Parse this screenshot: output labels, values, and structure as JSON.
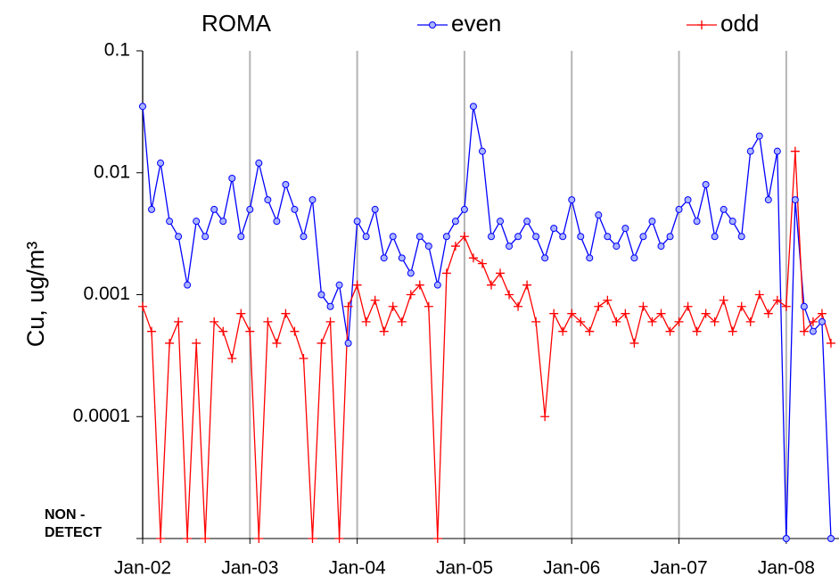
{
  "chart_data": {
    "type": "line",
    "title": "ROMA",
    "y_label": "Cu,  ug/m³",
    "log_scale": "y",
    "grid": "x",
    "legend": "top",
    "x": [
      "2002-01",
      "2002-02",
      "2002-03",
      "2002-04",
      "2002-05",
      "2002-06",
      "2002-07",
      "2002-08",
      "2002-09",
      "2002-10",
      "2002-11",
      "2002-12",
      "2003-01",
      "2003-02",
      "2003-03",
      "2003-04",
      "2003-05",
      "2003-06",
      "2003-07",
      "2003-08",
      "2003-09",
      "2003-10",
      "2003-11",
      "2003-12",
      "2004-01",
      "2004-02",
      "2004-03",
      "2004-04",
      "2004-05",
      "2004-06",
      "2004-07",
      "2004-08",
      "2004-09",
      "2004-10",
      "2004-11",
      "2004-12",
      "2005-01",
      "2005-02",
      "2005-03",
      "2005-04",
      "2005-05",
      "2005-06",
      "2005-07",
      "2005-08",
      "2005-09",
      "2005-10",
      "2005-11",
      "2005-12",
      "2006-01",
      "2006-02",
      "2006-03",
      "2006-04",
      "2006-05",
      "2006-06",
      "2006-07",
      "2006-08",
      "2006-09",
      "2006-10",
      "2006-11",
      "2006-12",
      "2007-01",
      "2007-02",
      "2007-03",
      "2007-04",
      "2007-05",
      "2007-06",
      "2007-07",
      "2007-08",
      "2007-09",
      "2007-10",
      "2007-11",
      "2007-12",
      "2008-01",
      "2008-02",
      "2008-03",
      "2008-04",
      "2008-05",
      "2008-06"
    ],
    "series": [
      {
        "name": "even",
        "color": "#0000ff",
        "marker_fill": "#aab4ff",
        "values": [
          0.035,
          0.005,
          0.012,
          0.004,
          0.003,
          0.0012,
          0.004,
          0.003,
          0.005,
          0.004,
          0.009,
          0.003,
          0.005,
          0.012,
          0.006,
          0.004,
          0.008,
          0.005,
          0.003,
          0.006,
          0.001,
          0.0008,
          0.0012,
          0.0004,
          0.004,
          0.003,
          0.005,
          0.002,
          0.003,
          0.002,
          0.0015,
          0.003,
          0.0025,
          0.0012,
          0.003,
          0.004,
          0.005,
          0.035,
          0.015,
          0.003,
          0.004,
          0.0025,
          0.003,
          0.004,
          0.003,
          0.002,
          0.0035,
          0.003,
          0.006,
          0.003,
          0.002,
          0.0045,
          0.003,
          0.0025,
          0.0035,
          0.002,
          0.003,
          0.004,
          0.0025,
          0.003,
          0.005,
          0.006,
          0.004,
          0.008,
          0.003,
          0.005,
          0.004,
          0.003,
          0.015,
          0.02,
          0.006,
          0.015,
          1e-05,
          0.006,
          0.0008,
          0.0005,
          0.0006,
          1e-05
        ]
      },
      {
        "name": "odd",
        "color": "#ff0000",
        "values": [
          0.0008,
          0.0005,
          1e-05,
          0.0004,
          0.0006,
          1e-05,
          0.0004,
          1e-05,
          0.0006,
          0.0005,
          0.0003,
          0.0007,
          0.0005,
          1e-05,
          0.0006,
          0.0004,
          0.0007,
          0.0005,
          0.0003,
          1e-05,
          0.0004,
          0.0006,
          1e-05,
          0.0008,
          0.0012,
          0.0006,
          0.0009,
          0.0005,
          0.0008,
          0.0006,
          0.001,
          0.0012,
          0.0008,
          1e-05,
          0.0015,
          0.0025,
          0.003,
          0.002,
          0.0018,
          0.0012,
          0.0015,
          0.001,
          0.0008,
          0.0012,
          0.0006,
          0.0001,
          0.0007,
          0.0005,
          0.0007,
          0.0006,
          0.0005,
          0.0008,
          0.0009,
          0.0006,
          0.0007,
          0.0004,
          0.0008,
          0.0006,
          0.0007,
          0.0005,
          0.0006,
          0.0008,
          0.0005,
          0.0007,
          0.0006,
          0.0009,
          0.0005,
          0.0008,
          0.0006,
          0.001,
          0.0007,
          0.0009,
          0.0008,
          0.015,
          0.0005,
          0.0006,
          0.0007,
          0.0004
        ]
      }
    ],
    "xlim": [
      "2002-01",
      "2008-07"
    ],
    "xticks": [
      {
        "value": "2002-01",
        "label": "Jan-02"
      },
      {
        "value": "2003-01",
        "label": "Jan-03"
      },
      {
        "value": "2004-01",
        "label": "Jan-04"
      },
      {
        "value": "2005-01",
        "label": "Jan-05"
      },
      {
        "value": "2006-01",
        "label": "Jan-06"
      },
      {
        "value": "2007-01",
        "label": "Jan-07"
      },
      {
        "value": "2008-01",
        "label": "Jan-08"
      }
    ],
    "ylim": [
      1e-05,
      0.1
    ],
    "yticks": [
      {
        "value": 1e-05,
        "label": "NON - DETECT"
      },
      0.0001,
      0.001,
      0.01,
      0.1
    ]
  }
}
